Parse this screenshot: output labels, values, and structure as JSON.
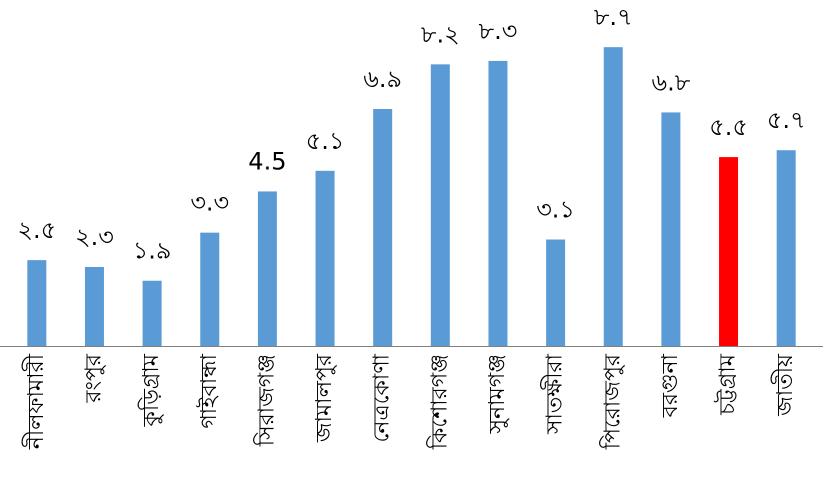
{
  "chart_data": {
    "type": "bar",
    "title": "",
    "xlabel": "",
    "ylabel": "",
    "ylim": [
      0,
      9.2
    ],
    "grid": false,
    "legend": "none",
    "categories": [
      "নীলফামারী",
      "রংপুর",
      "কুড়িগ্রাম",
      "গাইবান্ধা",
      "সিরাজগঞ্জ",
      "জামালপুর",
      "নেত্রকোণা",
      "কিশোরগঞ্জ",
      "সুনামগঞ্জ",
      "সাতক্ষীরা",
      "পিরোজপুর",
      "বরগুনা",
      "চট্টগ্রাম",
      "জাতীয়"
    ],
    "values": [
      2.5,
      2.3,
      1.9,
      3.3,
      4.5,
      5.1,
      6.9,
      8.2,
      8.3,
      3.1,
      8.7,
      6.8,
      5.5,
      5.7
    ],
    "value_labels": [
      "২.৫",
      "২.৩",
      "১.৯",
      "৩.৩",
      "4.5",
      "৫.১",
      "৬.৯",
      "৮.২",
      "৮.৩",
      "৩.১",
      "৮.৭",
      "৬.৮",
      "৫.৫",
      "৫.৭"
    ],
    "colors": {
      "bar": "#5b9bd5",
      "highlight_bar": "#ff0000",
      "highlight_label": "#ff0000",
      "axis": "#808080",
      "text": "#000000"
    },
    "highlight_index": 12
  }
}
